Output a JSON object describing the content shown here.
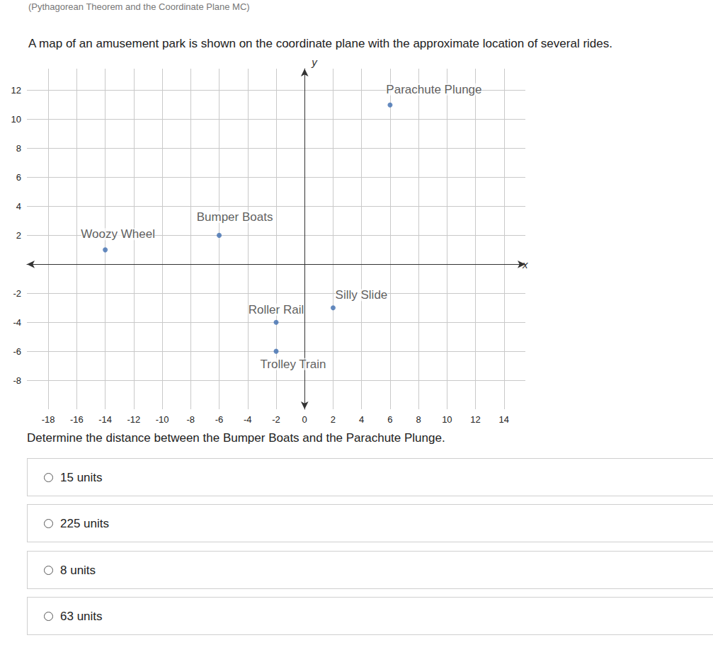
{
  "header": "(Pythagorean Theorem and the Coordinate Plane MC)",
  "prompt": "A map of an amusement park is shown on the coordinate plane with the approximate location of several rides.",
  "chart_data": {
    "type": "scatter",
    "x_label": "x",
    "y_label": "y",
    "point_labels": [
      "Parachute Plunge",
      "Bumper Boats",
      "Woozy Wheel",
      "Silly Slide",
      "Roller Rail",
      "Trolley Train"
    ],
    "x": [
      6,
      -6,
      -14,
      2,
      -2,
      -2
    ],
    "values": [
      11,
      2,
      1,
      -3,
      -4,
      -6
    ],
    "xlim": [
      -19.5,
      15.5
    ],
    "ylim": [
      -10,
      13.5
    ],
    "xticks": [
      -18,
      -16,
      -14,
      -12,
      -10,
      -8,
      -6,
      -4,
      -2,
      0,
      2,
      4,
      6,
      8,
      10,
      12,
      14
    ],
    "yticks": [
      -8,
      -6,
      -4,
      -2,
      2,
      4,
      6,
      8,
      10,
      12
    ],
    "grid": true,
    "color": "#3f6eb0"
  },
  "question": "Determine the distance between the Bumper Boats and the Parachute Plunge.",
  "options": [
    "15 units",
    "225 units",
    "8 units",
    "63 units"
  ]
}
